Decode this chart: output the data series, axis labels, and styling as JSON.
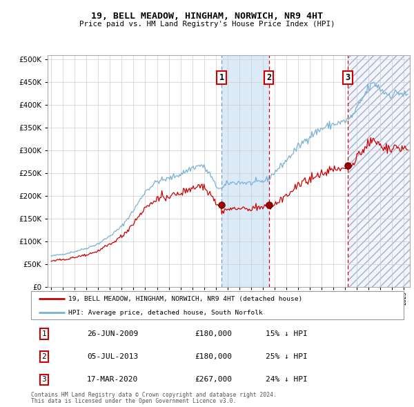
{
  "title": "19, BELL MEADOW, HINGHAM, NORWICH, NR9 4HT",
  "subtitle": "Price paid vs. HM Land Registry's House Price Index (HPI)",
  "legend_line1": "19, BELL MEADOW, HINGHAM, NORWICH, NR9 4HT (detached house)",
  "legend_line2": "HPI: Average price, detached house, South Norfolk",
  "footer1": "Contains HM Land Registry data © Crown copyright and database right 2024.",
  "footer2": "This data is licensed under the Open Government Licence v3.0.",
  "transactions": [
    {
      "label": "1",
      "date": "26-JUN-2009",
      "price": 180000,
      "pct": "15% ↓ HPI",
      "x_year": 2009.49
    },
    {
      "label": "2",
      "date": "05-JUL-2013",
      "price": 180000,
      "pct": "25% ↓ HPI",
      "x_year": 2013.51
    },
    {
      "label": "3",
      "date": "17-MAR-2020",
      "price": 267000,
      "pct": "24% ↓ HPI",
      "x_year": 2020.21
    }
  ],
  "hpi_color": "#7ab0d4",
  "price_color": "#cc0000",
  "marker_color": "#990000",
  "shaded_color": "#daeaf7",
  "ylim": [
    0,
    510000
  ],
  "xlim_start": 1994.7,
  "xlim_end": 2025.5
}
